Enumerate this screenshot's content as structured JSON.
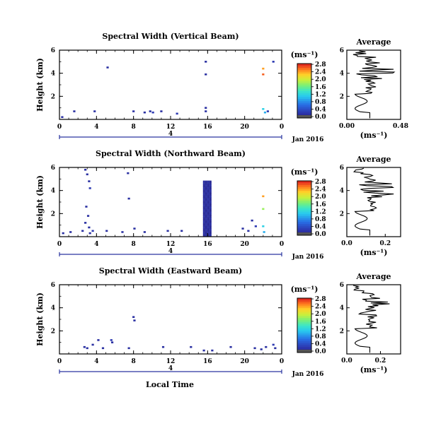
{
  "figure": {
    "date_label": "Jan 2016",
    "xlabel_bottom": "Local Time",
    "day_marker_label": "4"
  },
  "chart_data": [
    {
      "type": "heatmap",
      "title": "Spectral Width (Vertical Beam)",
      "ylabel": "Height (km)",
      "xlabel": "Local Time",
      "xlim": [
        0,
        24
      ],
      "xticks": [
        "0",
        "4",
        "8",
        "12",
        "16",
        "20",
        "0"
      ],
      "ylim": [
        0,
        6
      ],
      "yticks": [
        "2",
        "4",
        "6"
      ],
      "colorbar": {
        "unit": "(ms⁻¹)",
        "ticks": [
          "0.0",
          "0.4",
          "0.8",
          "1.2",
          "1.6",
          "2.0",
          "2.4",
          "2.8"
        ],
        "range": [
          0,
          2.8
        ]
      },
      "cells": [
        [
          0.3,
          0.2,
          0.2
        ],
        [
          1.6,
          0.7,
          0.2
        ],
        [
          3.8,
          0.7,
          0.2
        ],
        [
          5.2,
          4.5,
          0.2
        ],
        [
          8.0,
          0.7,
          0.2
        ],
        [
          9.2,
          0.6,
          0.2
        ],
        [
          9.8,
          0.7,
          0.2
        ],
        [
          10.1,
          0.6,
          0.3
        ],
        [
          11.0,
          0.7,
          0.2
        ],
        [
          12.7,
          0.5,
          0.3
        ],
        [
          15.8,
          5.0,
          0.2
        ],
        [
          15.8,
          3.9,
          0.2
        ],
        [
          15.8,
          1.0,
          0.2
        ],
        [
          15.8,
          0.7,
          0.2
        ],
        [
          22.0,
          4.4,
          2.4
        ],
        [
          22.0,
          3.9,
          2.6
        ],
        [
          22.0,
          0.9,
          1.2
        ],
        [
          22.2,
          0.6,
          1.0
        ],
        [
          22.5,
          0.7,
          0.3
        ],
        [
          23.1,
          5.0,
          0.3
        ]
      ],
      "profile": {
        "title": "Average",
        "xlabel": "(ms⁻¹)",
        "xticks": [
          "0.00",
          "0.48"
        ],
        "xlim": [
          0,
          0.48
        ],
        "ylim": [
          0,
          6
        ],
        "yticks": [
          "2",
          "4",
          "6"
        ]
      }
    },
    {
      "type": "heatmap",
      "title": "Spectral Width (Northward Beam)",
      "ylabel": "Height (km)",
      "xlabel": "Local Time",
      "xlim": [
        0,
        24
      ],
      "xticks": [
        "0",
        "4",
        "8",
        "12",
        "16",
        "20",
        "0"
      ],
      "ylim": [
        0,
        6
      ],
      "yticks": [
        "2",
        "4",
        "6"
      ],
      "colorbar": {
        "unit": "(ms⁻¹)",
        "ticks": [
          "0.0",
          "0.4",
          "0.8",
          "1.2",
          "1.6",
          "2.0",
          "2.4",
          "2.8"
        ],
        "range": [
          0,
          2.8
        ]
      },
      "cells": [
        [
          0.4,
          0.3,
          0.2
        ],
        [
          1.2,
          0.4,
          0.2
        ],
        [
          2.5,
          0.5,
          0.2
        ],
        [
          2.8,
          5.8,
          0.2
        ],
        [
          3.0,
          5.4,
          0.2
        ],
        [
          3.2,
          4.8,
          0.2
        ],
        [
          3.3,
          4.2,
          0.3
        ],
        [
          2.9,
          2.6,
          0.2
        ],
        [
          3.1,
          1.8,
          0.2
        ],
        [
          2.8,
          1.2,
          0.2
        ],
        [
          3.2,
          0.8,
          0.2
        ],
        [
          3.6,
          0.5,
          0.3
        ],
        [
          3.3,
          0.3,
          0.2
        ],
        [
          5.1,
          0.5,
          0.2
        ],
        [
          6.8,
          0.4,
          0.2
        ],
        [
          7.4,
          5.5,
          0.2
        ],
        [
          7.5,
          3.3,
          0.2
        ],
        [
          8.1,
          0.7,
          0.2
        ],
        [
          9.2,
          0.4,
          0.2
        ],
        [
          11.7,
          0.5,
          0.2
        ],
        [
          13.2,
          0.5,
          0.2
        ],
        [
          19.8,
          0.7,
          0.2
        ],
        [
          20.4,
          0.5,
          0.2
        ],
        [
          21.2,
          0.9,
          0.3
        ],
        [
          20.8,
          1.4,
          0.2
        ],
        [
          22.0,
          3.5,
          2.4
        ],
        [
          22.0,
          2.4,
          1.8
        ],
        [
          22.0,
          0.9,
          1.2
        ],
        [
          22.1,
          0.4,
          1.0
        ]
      ],
      "column": {
        "x_from": 15.5,
        "x_to": 16.3,
        "y_from": 0,
        "y_to": 4.8,
        "value": 0.1
      },
      "profile": {
        "title": "Average",
        "xlabel": "(ms⁻¹)",
        "xticks": [
          "0.0",
          "0.2"
        ],
        "xlim": [
          0,
          0.28
        ],
        "ylim": [
          0,
          6
        ],
        "yticks": [
          "2",
          "4",
          "6"
        ]
      }
    },
    {
      "type": "heatmap",
      "title": "Spectral Width (Eastward Beam)",
      "ylabel": "Height (km)",
      "xlabel": "Local Time",
      "xlim": [
        0,
        24
      ],
      "xticks": [
        "0",
        "4",
        "8",
        "12",
        "16",
        "20",
        "0"
      ],
      "ylim": [
        0,
        6
      ],
      "yticks": [
        "2",
        "4",
        "6"
      ],
      "colorbar": {
        "unit": "(ms⁻¹)",
        "ticks": [
          "0.0",
          "0.4",
          "0.8",
          "1.2",
          "1.6",
          "2.0",
          "2.4",
          "2.8"
        ],
        "range": [
          0,
          2.8
        ]
      },
      "cells": [
        [
          2.7,
          0.6,
          0.2
        ],
        [
          3.0,
          0.5,
          0.2
        ],
        [
          3.6,
          0.8,
          0.2
        ],
        [
          4.2,
          1.2,
          0.2
        ],
        [
          4.7,
          0.5,
          0.2
        ],
        [
          5.6,
          1.2,
          0.3
        ],
        [
          5.7,
          1.0,
          0.2
        ],
        [
          7.5,
          0.5,
          0.2
        ],
        [
          8.0,
          3.2,
          0.2
        ],
        [
          8.1,
          2.9,
          0.2
        ],
        [
          11.2,
          0.6,
          0.2
        ],
        [
          14.2,
          0.6,
          0.2
        ],
        [
          15.6,
          0.3,
          0.2
        ],
        [
          16.5,
          0.3,
          0.2
        ],
        [
          18.5,
          0.6,
          0.2
        ],
        [
          21.1,
          0.5,
          0.2
        ],
        [
          21.8,
          0.4,
          0.2
        ],
        [
          22.3,
          0.6,
          0.2
        ],
        [
          23.1,
          0.8,
          0.3
        ],
        [
          23.3,
          0.5,
          0.2
        ]
      ],
      "profile": {
        "title": "Average",
        "xlabel": "(ms⁻¹)",
        "xticks": [
          "0.0",
          "0.2"
        ],
        "xlim": [
          0,
          0.32
        ],
        "ylim": [
          0,
          6
        ],
        "yticks": [
          "2",
          "4",
          "6"
        ]
      }
    }
  ]
}
